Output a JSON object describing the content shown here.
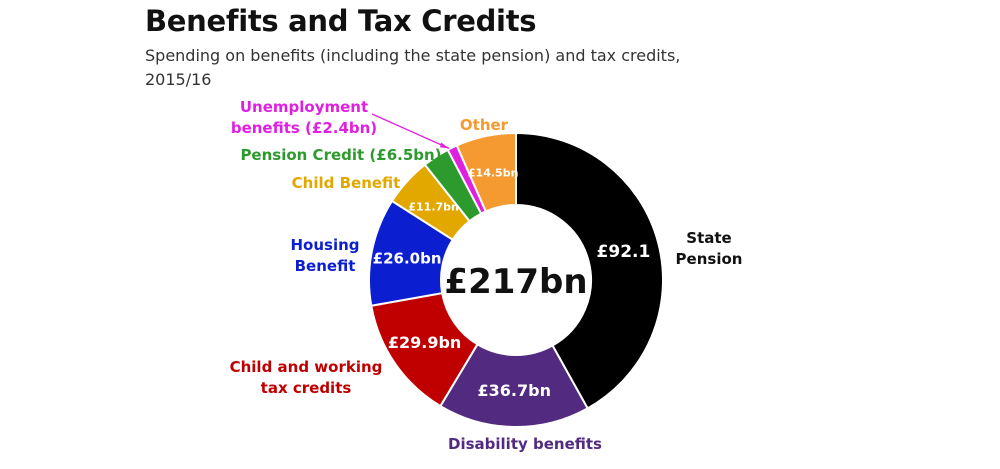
{
  "chart_data": {
    "type": "pie",
    "title": "Benefits and Tax Credits",
    "subtitle": "Spending on benefits (including the state pension) and tax credits, 2015/16",
    "total_label": "£217bn",
    "total": 217,
    "unit": "£bn",
    "slices": [
      {
        "name": "State Pension",
        "name_lines": [
          "State",
          "Pension"
        ],
        "value": 92.1,
        "value_label": "£92.1",
        "color": "#000000",
        "label_color": "#111111"
      },
      {
        "name": "Disability benefits",
        "name_lines": [
          "Disability benefits"
        ],
        "value": 36.7,
        "value_label": "£36.7bn",
        "color": "#522a7f",
        "label_color": "#522a7f"
      },
      {
        "name": "Child and working tax credits",
        "name_lines": [
          "Child and working",
          "tax credits"
        ],
        "value": 29.9,
        "value_label": "£29.9bn",
        "color": "#c00000",
        "label_color": "#c00000"
      },
      {
        "name": "Housing Benefit",
        "name_lines": [
          "Housing",
          "Benefit"
        ],
        "value": 26.0,
        "value_label": "£26.0bn",
        "color": "#0b1fd1",
        "label_color": "#0b1fd1"
      },
      {
        "name": "Child Benefit",
        "name_lines": [
          "Child Benefit"
        ],
        "value": 11.7,
        "value_label": "£11.7bn",
        "color": "#e2a800",
        "label_color": "#e2a800"
      },
      {
        "name": "Pension Credit (£6.5bn)",
        "name_lines": [
          "Pension Credit (£6.5bn)"
        ],
        "value": 6.5,
        "value_label": "",
        "color": "#2d9a2d",
        "label_color": "#2d9a2d"
      },
      {
        "name": "Unemployment benefits (£2.4bn)",
        "name_lines": [
          "Unemployment",
          "benefits (£2.4bn)"
        ],
        "value": 2.4,
        "value_label": "",
        "color": "#e020e0",
        "label_color": "#e020e0"
      },
      {
        "name": "Other",
        "name_lines": [
          "Other"
        ],
        "value": 14.5,
        "value_label": "£14.5bn",
        "color": "#f59a30",
        "label_color": "#f59a30"
      }
    ]
  }
}
